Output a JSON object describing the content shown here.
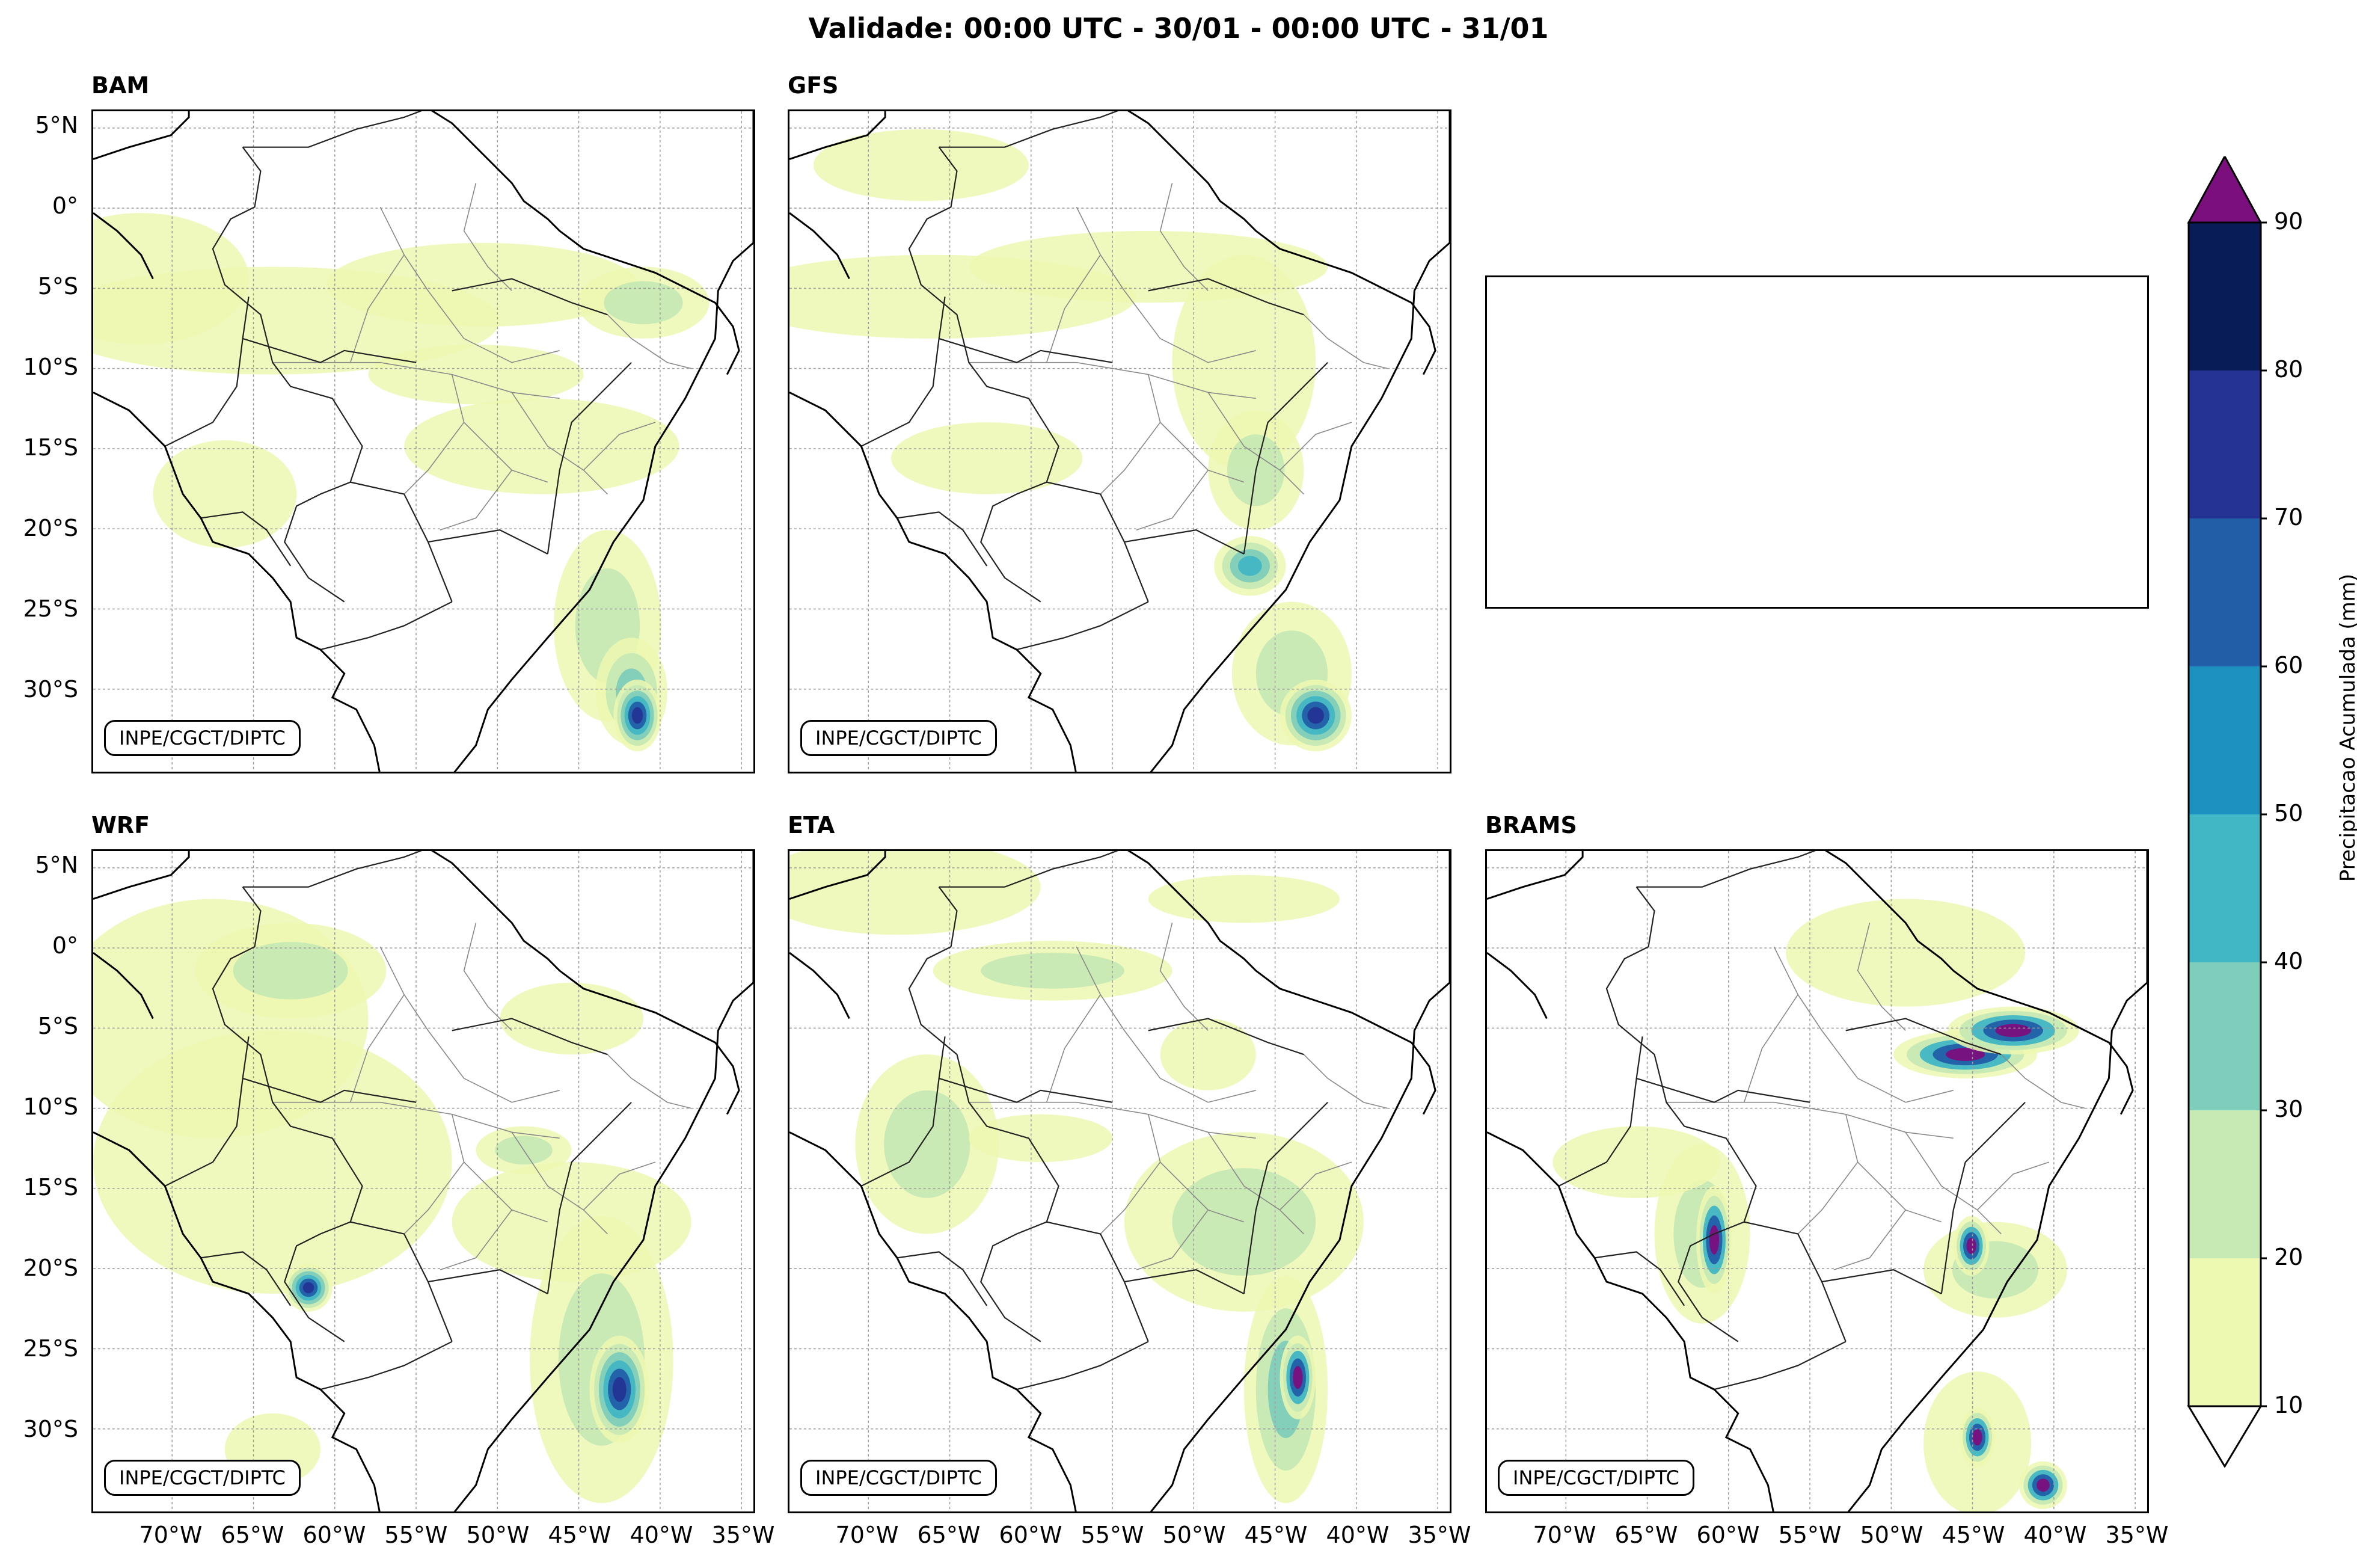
{
  "title": "Validade: 00:00 UTC - 30/01 - 00:00 UTC - 31/01",
  "credit": "INPE/CGCT/DIPTC",
  "panels": [
    {
      "name": "BAM"
    },
    {
      "name": "GFS"
    },
    {
      "name": "WRF"
    },
    {
      "name": "ETA"
    },
    {
      "name": "BRAMS"
    }
  ],
  "lat_labels": [
    "5°N",
    "0°",
    "5°S",
    "10°S",
    "15°S",
    "20°S",
    "25°S",
    "30°S"
  ],
  "lon_labels": [
    "70°W",
    "65°W",
    "60°W",
    "55°W",
    "50°W",
    "45°W",
    "40°W",
    "35°W"
  ],
  "colorbar": {
    "label": "Precipitacao Acumulada (mm)",
    "ticks": [
      "10",
      "20",
      "30",
      "40",
      "50",
      "60",
      "70",
      "80",
      "90"
    ],
    "colors": [
      "#edf8b1",
      "#c7e9b4",
      "#7fcdbb",
      "#41b6c4",
      "#1d91c0",
      "#225ea8",
      "#253494",
      "#081d58"
    ],
    "over_color": "#7b0f7e",
    "under_color": "#ffffff"
  }
}
